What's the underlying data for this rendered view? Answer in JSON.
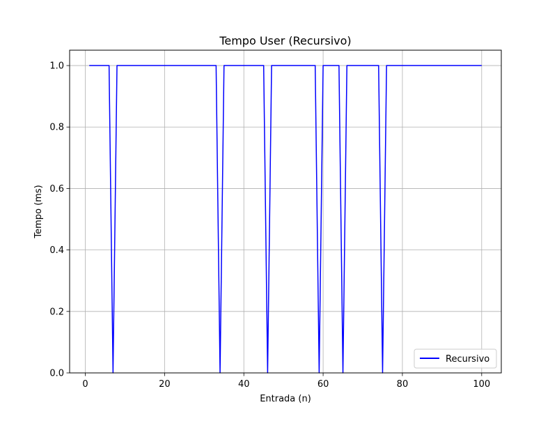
{
  "chart_data": {
    "type": "line",
    "title": "Tempo User (Recursivo)",
    "xlabel": "Entrada (n)",
    "ylabel": "Tempo (ms)",
    "xlim": [
      -3.95,
      104.95
    ],
    "ylim": [
      0,
      1.05
    ],
    "xticks": [
      0,
      20,
      40,
      60,
      80,
      100
    ],
    "xtick_labels": [
      "0",
      "20",
      "40",
      "60",
      "80",
      "100"
    ],
    "yticks": [
      0.0,
      0.2,
      0.4,
      0.6,
      0.8,
      1.0
    ],
    "ytick_labels": [
      "0.0",
      "0.2",
      "0.4",
      "0.6",
      "0.8",
      "1.0"
    ],
    "grid": true,
    "legend_position": "lower right",
    "series": [
      {
        "name": "Recursivo",
        "color": "#0000ff",
        "x": [
          1,
          6,
          7,
          8,
          33,
          34,
          35,
          45,
          46,
          47,
          58,
          59,
          60,
          64,
          65,
          66,
          74,
          75,
          76,
          100
        ],
        "y": [
          1,
          1,
          0,
          1,
          1,
          0,
          1,
          1,
          0,
          1,
          1,
          0,
          1,
          1,
          0,
          1,
          1,
          0,
          1,
          1
        ]
      }
    ]
  }
}
